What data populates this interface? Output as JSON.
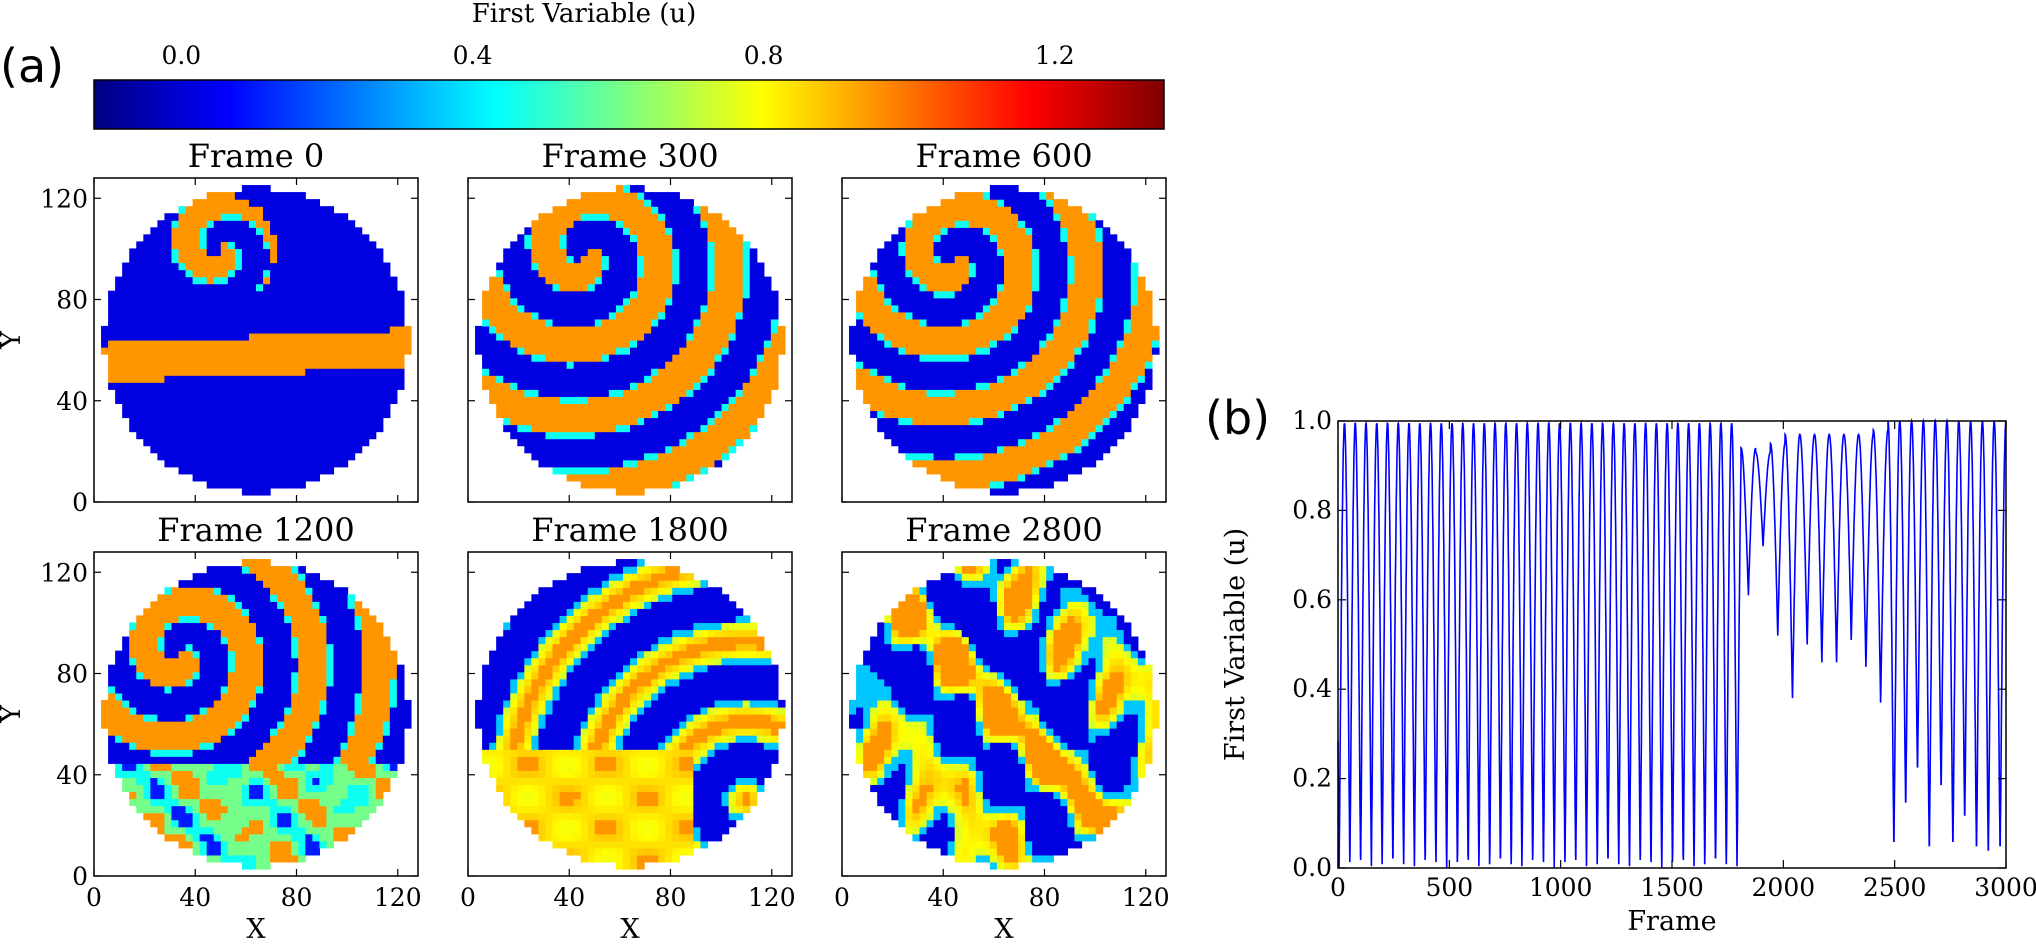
{
  "panel_labels": {
    "a": "(a)",
    "b": "(b)"
  },
  "colorbar": {
    "title": "First Variable (u)",
    "ticks": [
      {
        "value": 0.0,
        "label": "0.0"
      },
      {
        "value": 0.4,
        "label": "0.4"
      },
      {
        "value": 0.8,
        "label": "0.8"
      },
      {
        "value": 1.2,
        "label": "1.2"
      }
    ],
    "vmin": -0.12,
    "vmax": 1.35,
    "colormap": [
      "#00007f",
      "#0000ff",
      "#007fff",
      "#00ffff",
      "#7fff7f",
      "#ffff00",
      "#ff7f00",
      "#ff0000",
      "#7f0000"
    ]
  },
  "heatmap_axes": {
    "x_label": "X",
    "y_label": "Y",
    "x_ticks": [
      "0",
      "40",
      "80",
      "120"
    ],
    "y_ticks": [
      "0",
      "40",
      "80",
      "120"
    ],
    "range": [
      0,
      128
    ]
  },
  "chart_data": [
    {
      "type": "heatmap",
      "title": "Frame 0",
      "description": "spiral wave simulation on circular domain, u values in [0,1]",
      "xlim": [
        0,
        128
      ],
      "ylim": [
        0,
        128
      ]
    },
    {
      "type": "heatmap",
      "title": "Frame 300",
      "xlim": [
        0,
        128
      ],
      "ylim": [
        0,
        128
      ]
    },
    {
      "type": "heatmap",
      "title": "Frame 600",
      "xlim": [
        0,
        128
      ],
      "ylim": [
        0,
        128
      ]
    },
    {
      "type": "heatmap",
      "title": "Frame 1200",
      "xlim": [
        0,
        128
      ],
      "ylim": [
        0,
        128
      ]
    },
    {
      "type": "heatmap",
      "title": "Frame 1800",
      "xlim": [
        0,
        128
      ],
      "ylim": [
        0,
        128
      ]
    },
    {
      "type": "heatmap",
      "title": "Frame 2800",
      "xlim": [
        0,
        128
      ],
      "ylim": [
        0,
        128
      ]
    },
    {
      "type": "line",
      "title": "",
      "xlabel": "Frame",
      "ylabel": "First Variable (u)",
      "xlim": [
        0,
        3000
      ],
      "ylim": [
        0.0,
        1.0
      ],
      "x_ticks": [
        "0",
        "500",
        "1000",
        "1500",
        "2000",
        "2500",
        "3000"
      ],
      "y_ticks": [
        "0.0",
        "0.2",
        "0.4",
        "0.6",
        "0.8",
        "1.0"
      ],
      "color": "#0000ff",
      "series": [
        {
          "name": "u",
          "segments": [
            {
              "frames": [
                0,
                1810
              ],
              "period": 48,
              "min": 0.0,
              "max": 0.995
            },
            {
              "frames": [
                1810,
                2470
              ],
              "peaks": [
                0.94,
                0.93,
                0.95,
                0.97,
                0.97,
                0.97,
                0.97,
                0.97,
                0.97,
                0.98,
                0.98,
                0.99
              ],
              "troughs": [
                0.61,
                0.72,
                0.52,
                0.38,
                0.5,
                0.46,
                0.46,
                0.51,
                0.45,
                0.37
              ]
            },
            {
              "frames": [
                2470,
                3000
              ],
              "period": 48,
              "min": 0.02,
              "max": 1.0,
              "troughs": [
                0.04,
                0.13,
                0.21,
                0.03,
                0.17,
                0.04,
                0.1,
                0.03,
                0.02,
                0.03
              ]
            }
          ]
        }
      ]
    }
  ]
}
